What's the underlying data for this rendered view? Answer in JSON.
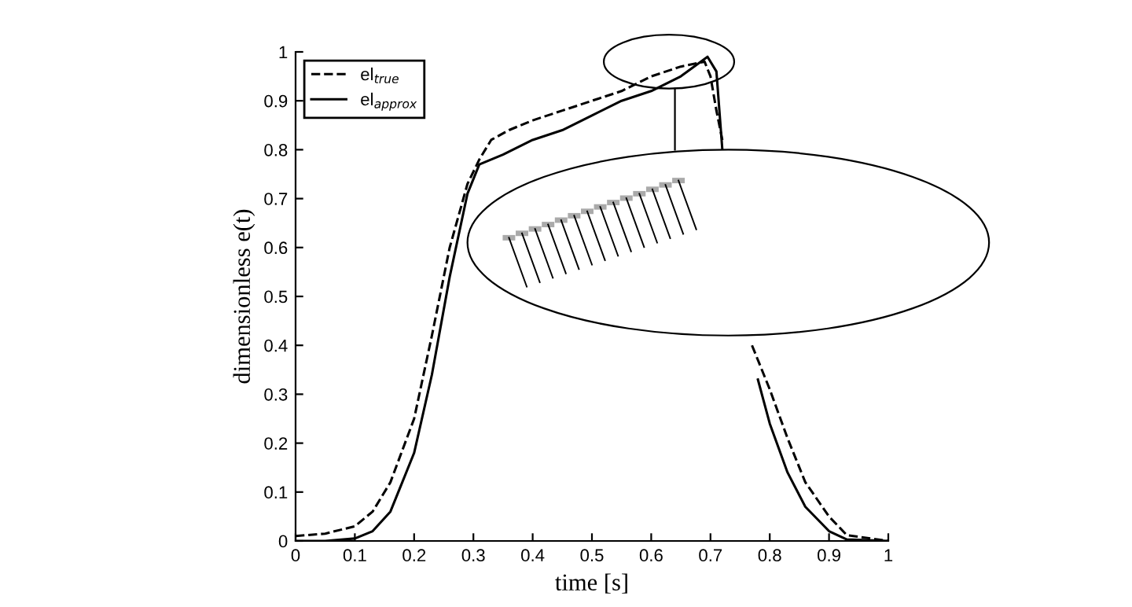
{
  "chart_data": {
    "type": "line",
    "xlabel": "time [s]",
    "ylabel": "dimensionless e(t)",
    "xlim": [
      0,
      1
    ],
    "ylim": [
      0,
      1
    ],
    "xticks": [
      0,
      {
        "value": 0.1,
        "label": "0.1"
      },
      {
        "value": 0.2,
        "label": "0.2"
      },
      {
        "value": 0.3,
        "label": "0.3"
      },
      {
        "value": 0.4,
        "label": "0.4"
      },
      {
        "value": 0.5,
        "label": "0.5"
      },
      {
        "value": 0.6,
        "label": "0.6"
      },
      {
        "value": 0.7,
        "label": "0.7"
      },
      {
        "value": 0.8,
        "label": "0.8"
      },
      {
        "value": 0.9,
        "label": "0.9"
      },
      1
    ],
    "yticks": [
      0,
      {
        "value": 0.1,
        "label": "0.1"
      },
      {
        "value": 0.2,
        "label": "0.2"
      },
      {
        "value": 0.3,
        "label": "0.3"
      },
      {
        "value": 0.4,
        "label": "0.4"
      },
      {
        "value": 0.5,
        "label": "0.5"
      },
      {
        "value": 0.6,
        "label": "0.6"
      },
      {
        "value": 0.7,
        "label": "0.7"
      },
      {
        "value": 0.8,
        "label": "0.8"
      },
      {
        "value": 0.9,
        "label": "0.9"
      },
      1
    ],
    "grid": false,
    "legend": "top left",
    "marker": "none",
    "series": [
      {
        "name": "el$_{true}$",
        "color": "#000000",
        "line_style": "dashed",
        "x": [
          0,
          0.05,
          0.1,
          0.13,
          0.16,
          0.2,
          0.23,
          0.26,
          0.29,
          0.31,
          0.33,
          0.36,
          0.4,
          0.45,
          0.5,
          0.55,
          0.6,
          0.65,
          0.69,
          0.7,
          0.71,
          0.72,
          0.74,
          0.77,
          0.8,
          0.83,
          0.86,
          0.9,
          0.93,
          1
        ],
        "values": [
          0.01,
          0.015,
          0.03,
          0.06,
          0.12,
          0.25,
          0.42,
          0.6,
          0.73,
          0.78,
          0.82,
          0.84,
          0.86,
          0.88,
          0.9,
          0.92,
          0.95,
          0.97,
          0.98,
          0.95,
          0.88,
          0.82,
          null,
          0.4,
          0.31,
          0.21,
          0.12,
          0.05,
          0.012,
          0
        ]
      },
      {
        "name": "el$_{approx}$",
        "color": "#000000",
        "line_style": "solid",
        "x": [
          0,
          0.05,
          0.1,
          0.13,
          0.16,
          0.2,
          0.23,
          0.26,
          0.29,
          0.31,
          0.35,
          0.4,
          0.45,
          0.5,
          0.55,
          0.6,
          0.65,
          0.695,
          0.71,
          0.72,
          0.75,
          0.78,
          0.8,
          0.83,
          0.86,
          0.9,
          0.93,
          1
        ],
        "values": [
          0,
          0,
          0.005,
          0.02,
          0.06,
          0.18,
          0.34,
          0.54,
          0.71,
          0.77,
          0.79,
          0.82,
          0.84,
          0.87,
          0.9,
          0.92,
          0.95,
          0.99,
          0.96,
          0.8,
          null,
          0.33,
          0.24,
          0.14,
          0.07,
          0.02,
          0.003,
          0
        ]
      }
    ]
  }
}
